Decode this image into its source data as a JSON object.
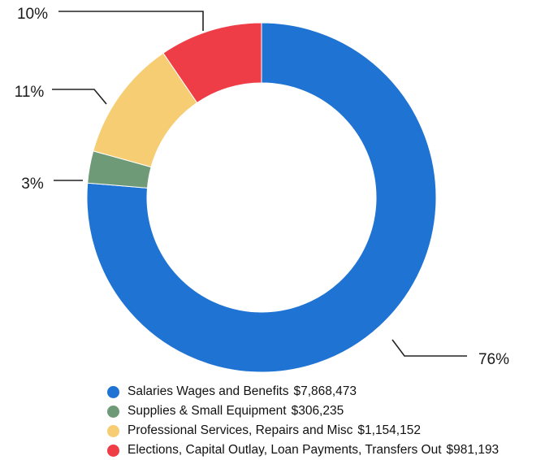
{
  "chart_data": {
    "type": "pie",
    "donut": true,
    "legend_position": "bottom",
    "series": [
      {
        "name": "Salaries Wages and Benefits",
        "amount_label": "$7,868,473",
        "value": 7868473,
        "percent_label": "76%",
        "color": "#1f73d3"
      },
      {
        "name": "Supplies & Small Equipment",
        "amount_label": "$306,235",
        "value": 306235,
        "percent_label": "3%",
        "color": "#6f9a78"
      },
      {
        "name": "Professional Services, Repairs and Misc",
        "amount_label": "$1,154,152",
        "value": 1154152,
        "percent_label": "11%",
        "color": "#f6cd72"
      },
      {
        "name": "Elections, Capital Outlay, Loan Payments, Transfers Out",
        "amount_label": "$981,193",
        "value": 981193,
        "percent_label": "10%",
        "color": "#ef3d47"
      }
    ]
  }
}
